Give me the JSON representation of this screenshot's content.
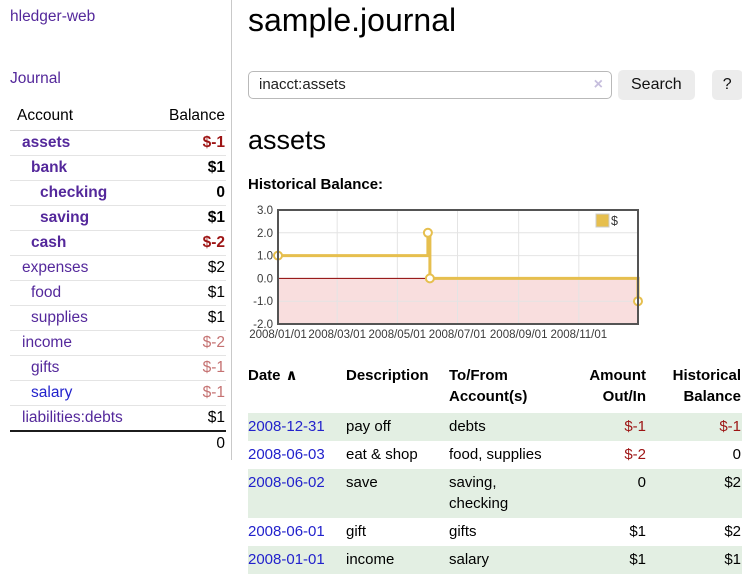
{
  "sidebar": {
    "app_title": "hledger-web",
    "journal_link": "Journal",
    "accounts": {
      "col_account": "Account",
      "col_balance": "Balance",
      "rows": [
        {
          "name": "assets",
          "depth": 1,
          "bold": true,
          "balance": "$-1",
          "balance_tone": "neg",
          "link_tone": "purple"
        },
        {
          "name": "bank",
          "depth": 2,
          "bold": true,
          "balance": "$1",
          "balance_tone": "",
          "link_tone": "purple"
        },
        {
          "name": "checking",
          "depth": 3,
          "bold": true,
          "balance": "0",
          "balance_tone": "",
          "link_tone": "purple"
        },
        {
          "name": "saving",
          "depth": 3,
          "bold": true,
          "balance": "$1",
          "balance_tone": "",
          "link_tone": "purple"
        },
        {
          "name": "cash",
          "depth": 2,
          "bold": true,
          "balance": "$-2",
          "balance_tone": "neg",
          "link_tone": "purple"
        },
        {
          "name": "expenses",
          "depth": 1,
          "bold": false,
          "balance": "$2",
          "balance_tone": "",
          "link_tone": "purple"
        },
        {
          "name": "food",
          "depth": 2,
          "bold": false,
          "balance": "$1",
          "balance_tone": "",
          "link_tone": "purple"
        },
        {
          "name": "supplies",
          "depth": 2,
          "bold": false,
          "balance": "$1",
          "balance_tone": "",
          "link_tone": "purple"
        },
        {
          "name": "income",
          "depth": 1,
          "bold": false,
          "balance": "$-2",
          "balance_tone": "soft",
          "link_tone": "purple"
        },
        {
          "name": "gifts",
          "depth": 2,
          "bold": false,
          "balance": "$-1",
          "balance_tone": "soft",
          "link_tone": "purple"
        },
        {
          "name": "salary",
          "depth": 2,
          "bold": false,
          "balance": "$-1",
          "balance_tone": "soft",
          "link_tone": "blue"
        },
        {
          "name": "liabilities:debts",
          "depth": 1,
          "bold": false,
          "balance": "$1",
          "balance_tone": "",
          "link_tone": "purple"
        }
      ],
      "total": "0"
    }
  },
  "header": {
    "title": "sample.journal",
    "search": {
      "value": "inacct:assets",
      "clear_icon": "×",
      "search_button": "Search",
      "help_button": "?"
    }
  },
  "account_page": {
    "heading": "assets",
    "chart_label": "Historical Balance:"
  },
  "chart_data": {
    "type": "line",
    "title": "Historical Balance:",
    "x_start": "2008-01-01",
    "x_end": "2008-12-31",
    "xticks": [
      "2008/01/01",
      "2008/03/01",
      "2008/05/01",
      "2008/07/01",
      "2008/09/01",
      "2008/11/01"
    ],
    "yticks": [
      3.0,
      2.0,
      1.0,
      0.0,
      -1.0,
      -2.0
    ],
    "ylim": [
      -2,
      3
    ],
    "grid": true,
    "legend": {
      "position": "top-right",
      "label": "$"
    },
    "series": [
      {
        "name": "$",
        "step": true,
        "points": [
          [
            "2008-01-01",
            1
          ],
          [
            "2008-06-01",
            2
          ],
          [
            "2008-06-03",
            0
          ],
          [
            "2008-12-31",
            -1
          ]
        ]
      }
    ],
    "styles": {
      "line_color": "#e6bf4e",
      "marker_fill": "#ffffff",
      "negative_region": "#f9dede",
      "zero_line": "#8b0000",
      "grid_color": "#e4e4e4",
      "border_color": "#545454",
      "tick_color": "#3a3a3a"
    }
  },
  "register": {
    "columns": [
      "Date",
      "Description",
      "To/From Account(s)",
      "Amount Out/In",
      "Historical Balance"
    ],
    "sort_icon": "∧",
    "rows": [
      {
        "date": "2008-12-31",
        "description": "pay off",
        "accounts": "debts",
        "amount": "$-1",
        "amount_tone": "neg",
        "balance": "$-1",
        "balance_tone": "neg"
      },
      {
        "date": "2008-06-03",
        "description": "eat & shop",
        "accounts": "food, supplies",
        "amount": "$-2",
        "amount_tone": "neg",
        "balance": "0",
        "balance_tone": ""
      },
      {
        "date": "2008-06-02",
        "description": "save",
        "accounts": "saving, checking",
        "amount": "0",
        "amount_tone": "",
        "balance": "$2",
        "balance_tone": ""
      },
      {
        "date": "2008-06-01",
        "description": "gift",
        "accounts": "gifts",
        "amount": "$1",
        "amount_tone": "",
        "balance": "$2",
        "balance_tone": ""
      },
      {
        "date": "2008-01-01",
        "description": "income",
        "accounts": "salary",
        "amount": "$1",
        "amount_tone": "",
        "balance": "$1",
        "balance_tone": ""
      }
    ]
  },
  "colors": {
    "link_purple": "#54289b",
    "link_blue": "#2222cc",
    "negative_strong": "#9d1414",
    "negative_soft": "#c57272",
    "row_stripe_green": "#e3efe3",
    "chart_line_gold": "#e6bf4e"
  }
}
